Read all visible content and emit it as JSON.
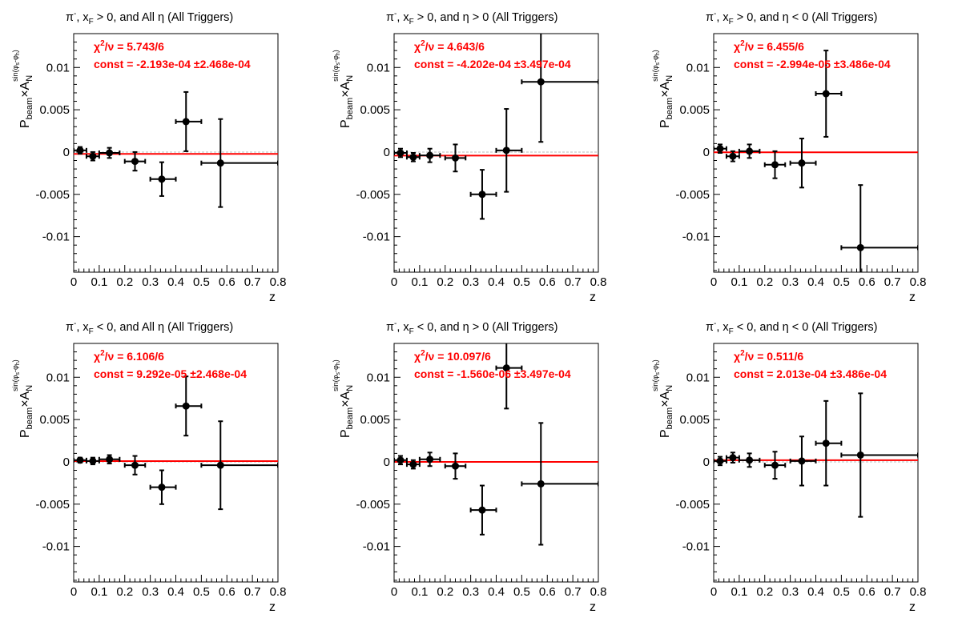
{
  "chart_data": [
    {
      "type": "scatter",
      "title_parts": [
        "π",
        "-",
        ", x",
        "F",
        " > 0, and All η (All Triggers)"
      ],
      "title": "π-, xF > 0, and All η (All Triggers)",
      "xlabel": "z",
      "ylabel": "P_beam × A_N^{sin(φ_s - φ_h)}",
      "xlim": [
        0,
        0.8
      ],
      "ylim": [
        -0.0142,
        0.014
      ],
      "xticks": [
        0,
        0.1,
        0.2,
        0.3,
        0.4,
        0.5,
        0.6,
        0.7,
        0.8
      ],
      "xtick_labels": [
        "0",
        "0.1",
        "0.2",
        "0.3",
        "0.4",
        "0.5",
        "0.6",
        "0.7",
        "0.8"
      ],
      "yticks": [
        -0.01,
        -0.005,
        0,
        0.005,
        0.01
      ],
      "ytick_labels": [
        "-0.01",
        "-0.005",
        "0",
        "0.005",
        "0.01"
      ],
      "chi2_label": "/ν = 5.743/6",
      "const_label": "const = -2.193e-04  ±2.468e-04",
      "fit_constant": -0.0002193,
      "points": [
        {
          "x": 0.025,
          "y": 0.0002,
          "xlo": 0.0,
          "xhi": 0.05,
          "yerr": 0.0004
        },
        {
          "x": 0.075,
          "y": -0.0005,
          "xlo": 0.05,
          "xhi": 0.1,
          "yerr": 0.0005
        },
        {
          "x": 0.14,
          "y": -0.0001,
          "xlo": 0.1,
          "xhi": 0.18,
          "yerr": 0.0006
        },
        {
          "x": 0.24,
          "y": -0.0011,
          "xlo": 0.2,
          "xhi": 0.28,
          "yerr": 0.0011
        },
        {
          "x": 0.345,
          "y": -0.0032,
          "xlo": 0.3,
          "xhi": 0.4,
          "yerr": 0.002
        },
        {
          "x": 0.44,
          "y": 0.0036,
          "xlo": 0.4,
          "xhi": 0.5,
          "yerr": 0.0035
        },
        {
          "x": 0.575,
          "y": -0.0013,
          "xlo": 0.5,
          "xhi": 0.8,
          "yerr": 0.0052
        }
      ]
    },
    {
      "type": "scatter",
      "title_parts": [
        "π",
        "-",
        ", x",
        "F",
        " > 0, and η > 0 (All Triggers)"
      ],
      "title": "π-, xF > 0, and η > 0 (All Triggers)",
      "xlabel": "z",
      "ylabel": "P_beam × A_N^{sin(φ_s - φ_h)}",
      "xlim": [
        0,
        0.8
      ],
      "ylim": [
        -0.0142,
        0.014
      ],
      "xticks": [
        0,
        0.1,
        0.2,
        0.3,
        0.4,
        0.5,
        0.6,
        0.7,
        0.8
      ],
      "xtick_labels": [
        "0",
        "0.1",
        "0.2",
        "0.3",
        "0.4",
        "0.5",
        "0.6",
        "0.7",
        "0.8"
      ],
      "yticks": [
        -0.01,
        -0.005,
        0,
        0.005,
        0.01
      ],
      "ytick_labels": [
        "-0.01",
        "-0.005",
        "0",
        "0.005",
        "0.01"
      ],
      "chi2_label": "/ν = 4.643/6",
      "const_label": "const = -4.202e-04  ±3.497e-04",
      "fit_constant": -0.0004202,
      "points": [
        {
          "x": 0.025,
          "y": -0.0001,
          "xlo": 0.0,
          "xhi": 0.05,
          "yerr": 0.0005
        },
        {
          "x": 0.075,
          "y": -0.0006,
          "xlo": 0.05,
          "xhi": 0.1,
          "yerr": 0.0005
        },
        {
          "x": 0.14,
          "y": -0.0004,
          "xlo": 0.1,
          "xhi": 0.18,
          "yerr": 0.0008
        },
        {
          "x": 0.24,
          "y": -0.0007,
          "xlo": 0.2,
          "xhi": 0.28,
          "yerr": 0.0016
        },
        {
          "x": 0.345,
          "y": -0.005,
          "xlo": 0.3,
          "xhi": 0.4,
          "yerr": 0.0029
        },
        {
          "x": 0.44,
          "y": 0.0002,
          "xlo": 0.4,
          "xhi": 0.5,
          "yerr": 0.0049
        },
        {
          "x": 0.575,
          "y": 0.0083,
          "xlo": 0.5,
          "xhi": 0.8,
          "yerr": 0.0071
        }
      ]
    },
    {
      "type": "scatter",
      "title_parts": [
        "π",
        "-",
        ", x",
        "F",
        " > 0, and η < 0 (All Triggers)"
      ],
      "title": "π-, xF > 0, and η < 0 (All Triggers)",
      "xlabel": "z",
      "ylabel": "P_beam × A_N^{sin(φ_s - φ_h)}",
      "xlim": [
        0,
        0.8
      ],
      "ylim": [
        -0.0142,
        0.014
      ],
      "xticks": [
        0,
        0.1,
        0.2,
        0.3,
        0.4,
        0.5,
        0.6,
        0.7,
        0.8
      ],
      "xtick_labels": [
        "0",
        "0.1",
        "0.2",
        "0.3",
        "0.4",
        "0.5",
        "0.6",
        "0.7",
        "0.8"
      ],
      "yticks": [
        -0.01,
        -0.005,
        0,
        0.005,
        0.01
      ],
      "ytick_labels": [
        "-0.01",
        "-0.005",
        "0",
        "0.005",
        "0.01"
      ],
      "chi2_label": "/ν = 6.455/6",
      "const_label": "const = -2.994e-05  ±3.486e-04",
      "fit_constant": -2.994e-05,
      "points": [
        {
          "x": 0.025,
          "y": 0.0004,
          "xlo": 0.0,
          "xhi": 0.05,
          "yerr": 0.0005
        },
        {
          "x": 0.075,
          "y": -0.0005,
          "xlo": 0.05,
          "xhi": 0.1,
          "yerr": 0.0006
        },
        {
          "x": 0.14,
          "y": 0.0001,
          "xlo": 0.1,
          "xhi": 0.18,
          "yerr": 0.0008
        },
        {
          "x": 0.24,
          "y": -0.0015,
          "xlo": 0.2,
          "xhi": 0.28,
          "yerr": 0.0016
        },
        {
          "x": 0.345,
          "y": -0.0013,
          "xlo": 0.3,
          "xhi": 0.4,
          "yerr": 0.0029
        },
        {
          "x": 0.44,
          "y": 0.0069,
          "xlo": 0.4,
          "xhi": 0.5,
          "yerr": 0.0051
        },
        {
          "x": 0.575,
          "y": -0.0113,
          "xlo": 0.5,
          "xhi": 0.8,
          "yerr": 0.0074
        }
      ]
    },
    {
      "type": "scatter",
      "title_parts": [
        "π",
        "-",
        ", x",
        "F",
        " < 0, and All η (All Triggers)"
      ],
      "title": "π-, xF < 0, and All η (All Triggers)",
      "xlabel": "z",
      "ylabel": "P_beam × A_N^{sin(φ_s - φ_h)}",
      "xlim": [
        0,
        0.8
      ],
      "ylim": [
        -0.0142,
        0.014
      ],
      "xticks": [
        0,
        0.1,
        0.2,
        0.3,
        0.4,
        0.5,
        0.6,
        0.7,
        0.8
      ],
      "xtick_labels": [
        "0",
        "0.1",
        "0.2",
        "0.3",
        "0.4",
        "0.5",
        "0.6",
        "0.7",
        "0.8"
      ],
      "yticks": [
        -0.01,
        -0.005,
        0,
        0.005,
        0.01
      ],
      "ytick_labels": [
        "-0.01",
        "-0.005",
        "0",
        "0.005",
        "0.01"
      ],
      "chi2_label": "/ν = 6.106/6",
      "const_label": "const = 9.292e-05  ±2.468e-04",
      "fit_constant": 9.292e-05,
      "points": [
        {
          "x": 0.025,
          "y": 0.0002,
          "xlo": 0.0,
          "xhi": 0.05,
          "yerr": 0.0003
        },
        {
          "x": 0.075,
          "y": 0.0001,
          "xlo": 0.05,
          "xhi": 0.1,
          "yerr": 0.0004
        },
        {
          "x": 0.14,
          "y": 0.0003,
          "xlo": 0.1,
          "xhi": 0.18,
          "yerr": 0.0005
        },
        {
          "x": 0.24,
          "y": -0.0004,
          "xlo": 0.2,
          "xhi": 0.28,
          "yerr": 0.0011
        },
        {
          "x": 0.345,
          "y": -0.003,
          "xlo": 0.3,
          "xhi": 0.4,
          "yerr": 0.002
        },
        {
          "x": 0.44,
          "y": 0.0066,
          "xlo": 0.4,
          "xhi": 0.5,
          "yerr": 0.0035
        },
        {
          "x": 0.575,
          "y": -0.0004,
          "xlo": 0.5,
          "xhi": 0.8,
          "yerr": 0.0052
        }
      ]
    },
    {
      "type": "scatter",
      "title_parts": [
        "π",
        "-",
        ", x",
        "F",
        " < 0, and η > 0 (All Triggers)"
      ],
      "title": "π-, xF < 0, and η > 0 (All Triggers)",
      "xlabel": "z",
      "ylabel": "P_beam × A_N^{sin(φ_s - φ_h)}",
      "xlim": [
        0,
        0.8
      ],
      "ylim": [
        -0.0142,
        0.014
      ],
      "xticks": [
        0,
        0.1,
        0.2,
        0.3,
        0.4,
        0.5,
        0.6,
        0.7,
        0.8
      ],
      "xtick_labels": [
        "0",
        "0.1",
        "0.2",
        "0.3",
        "0.4",
        "0.5",
        "0.6",
        "0.7",
        "0.8"
      ],
      "yticks": [
        -0.01,
        -0.005,
        0,
        0.005,
        0.01
      ],
      "ytick_labels": [
        "-0.01",
        "-0.005",
        "0",
        "0.005",
        "0.01"
      ],
      "chi2_label": "/ν = 10.097/6",
      "const_label": "const = -1.560e-06  ±3.497e-04",
      "fit_constant": -1.56e-06,
      "points": [
        {
          "x": 0.025,
          "y": 0.0002,
          "xlo": 0.0,
          "xhi": 0.05,
          "yerr": 0.0005
        },
        {
          "x": 0.075,
          "y": -0.0003,
          "xlo": 0.05,
          "xhi": 0.1,
          "yerr": 0.0005
        },
        {
          "x": 0.14,
          "y": 0.0003,
          "xlo": 0.1,
          "xhi": 0.18,
          "yerr": 0.0008
        },
        {
          "x": 0.24,
          "y": -0.0005,
          "xlo": 0.2,
          "xhi": 0.28,
          "yerr": 0.0015
        },
        {
          "x": 0.345,
          "y": -0.0057,
          "xlo": 0.3,
          "xhi": 0.4,
          "yerr": 0.0029
        },
        {
          "x": 0.44,
          "y": 0.0111,
          "xlo": 0.4,
          "xhi": 0.5,
          "yerr": 0.0048
        },
        {
          "x": 0.575,
          "y": -0.0026,
          "xlo": 0.5,
          "xhi": 0.8,
          "yerr": 0.0072
        }
      ]
    },
    {
      "type": "scatter",
      "title_parts": [
        "π",
        "-",
        ", x",
        "F",
        " < 0, and η < 0 (All Triggers)"
      ],
      "title": "π-, xF < 0, and η < 0 (All Triggers)",
      "xlabel": "z",
      "ylabel": "P_beam × A_N^{sin(φ_s - φ_h)}",
      "xlim": [
        0,
        0.8
      ],
      "ylim": [
        -0.0142,
        0.014
      ],
      "xticks": [
        0,
        0.1,
        0.2,
        0.3,
        0.4,
        0.5,
        0.6,
        0.7,
        0.8
      ],
      "xtick_labels": [
        "0",
        "0.1",
        "0.2",
        "0.3",
        "0.4",
        "0.5",
        "0.6",
        "0.7",
        "0.8"
      ],
      "yticks": [
        -0.01,
        -0.005,
        0,
        0.005,
        0.01
      ],
      "ytick_labels": [
        "-0.01",
        "-0.005",
        "0",
        "0.005",
        "0.01"
      ],
      "chi2_label": "/ν = 0.511/6",
      "const_label": "const = 2.013e-04  ±3.486e-04",
      "fit_constant": 0.0002013,
      "points": [
        {
          "x": 0.025,
          "y": 0.0001,
          "xlo": 0.0,
          "xhi": 0.05,
          "yerr": 0.0005
        },
        {
          "x": 0.075,
          "y": 0.0005,
          "xlo": 0.05,
          "xhi": 0.1,
          "yerr": 0.0006
        },
        {
          "x": 0.14,
          "y": 0.0002,
          "xlo": 0.1,
          "xhi": 0.18,
          "yerr": 0.0008
        },
        {
          "x": 0.24,
          "y": -0.0004,
          "xlo": 0.2,
          "xhi": 0.28,
          "yerr": 0.0016
        },
        {
          "x": 0.345,
          "y": 0.0001,
          "xlo": 0.3,
          "xhi": 0.4,
          "yerr": 0.0029
        },
        {
          "x": 0.44,
          "y": 0.0022,
          "xlo": 0.4,
          "xhi": 0.5,
          "yerr": 0.005
        },
        {
          "x": 0.575,
          "y": 0.0008,
          "xlo": 0.5,
          "xhi": 0.8,
          "yerr": 0.0073
        }
      ]
    }
  ],
  "colors": {
    "fit_line": "#ff0000",
    "zero_line": "#bbbbbb",
    "markers": "#000000",
    "stats_text": "#ff0000"
  }
}
